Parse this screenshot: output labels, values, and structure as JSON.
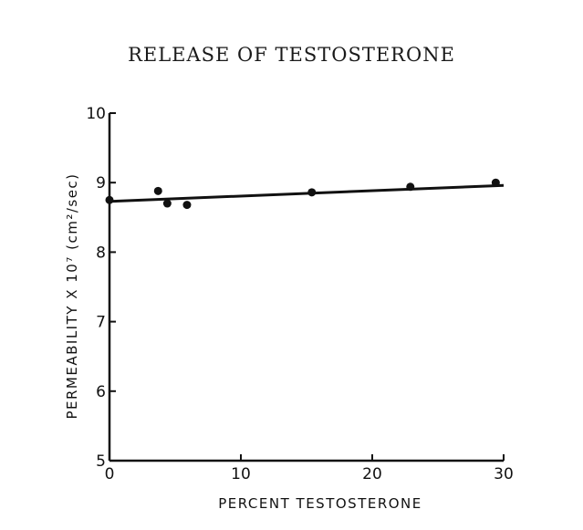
{
  "chart_data": {
    "type": "scatter",
    "title": "RELEASE OF TESTOSTERONE",
    "xlabel": "PERCENT TESTOSTERONE",
    "ylabel": "PERMEABILITY X 10⁷ (cm²/sec)",
    "xlim": [
      0,
      30
    ],
    "ylim": [
      5,
      10
    ],
    "x_ticks": [
      0,
      10,
      20,
      30
    ],
    "y_ticks": [
      5,
      6,
      7,
      8,
      9,
      10
    ],
    "grid": false,
    "points": [
      {
        "x": 0.0,
        "y": 8.75
      },
      {
        "x": 3.7,
        "y": 8.88
      },
      {
        "x": 4.4,
        "y": 8.7
      },
      {
        "x": 5.9,
        "y": 8.68
      },
      {
        "x": 15.4,
        "y": 8.86
      },
      {
        "x": 22.9,
        "y": 8.94
      },
      {
        "x": 29.4,
        "y": 9.0
      }
    ],
    "fit_line": {
      "x": [
        0,
        30
      ],
      "y": [
        8.73,
        8.96
      ]
    }
  }
}
